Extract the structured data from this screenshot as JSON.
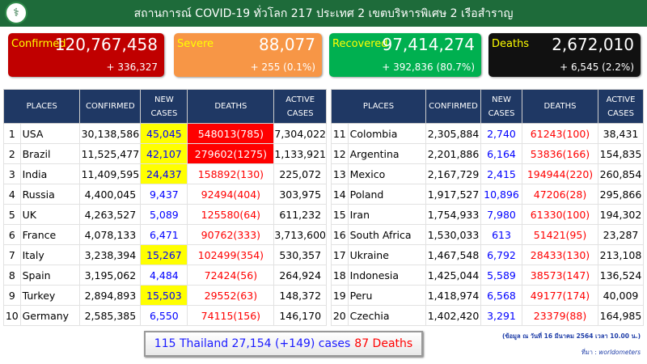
{
  "header": {
    "title": "สถานการณ์ COVID-19 ทั่วโลก 217 ประเทศ 2 เขตบริหารพิเศษ 2 เรือสำราญ",
    "logo_icon": "ministry-of-public-health-logo"
  },
  "cards": [
    {
      "label": "Confirmed",
      "value": "120,767,458",
      "change": "+ 336,327",
      "color": "#c00000"
    },
    {
      "label": "Severe",
      "value": "88,077",
      "change": "+ 255 (0.1%)",
      "color": "#f79646"
    },
    {
      "label": "Recovered",
      "value": "97,414,274",
      "change": "+ 392,836 (80.7%)",
      "color": "#00b050"
    },
    {
      "label": "Deaths",
      "value": "2,672,010",
      "change": "+ 6,545 (2.2%)",
      "color": "#111111"
    }
  ],
  "columns": [
    "PLACES",
    "CONFIRMED",
    "NEW CASES",
    "DEATHS",
    "ACTIVE CASES"
  ],
  "rows": [
    {
      "rank": "1",
      "place": "USA",
      "confirmed": "30,138,586",
      "new": "45,045",
      "deaths": "548013(785)",
      "active": "7,304,022",
      "new_hl": true,
      "death_hl": true
    },
    {
      "rank": "2",
      "place": "Brazil",
      "confirmed": "11,525,477",
      "new": "42,107",
      "deaths": "279602(1275)",
      "active": "1,133,921",
      "new_hl": true,
      "death_hl": true
    },
    {
      "rank": "3",
      "place": "India",
      "confirmed": "11,409,595",
      "new": "24,437",
      "deaths": "158892(130)",
      "active": "225,072",
      "new_hl": true
    },
    {
      "rank": "4",
      "place": "Russia",
      "confirmed": "4,400,045",
      "new": "9,437",
      "deaths": "92494(404)",
      "active": "303,975"
    },
    {
      "rank": "5",
      "place": "UK",
      "confirmed": "4,263,527",
      "new": "5,089",
      "deaths": "125580(64)",
      "active": "611,232"
    },
    {
      "rank": "6",
      "place": "France",
      "confirmed": "4,078,133",
      "new": "6,471",
      "deaths": "90762(333)",
      "active": "3,713,600"
    },
    {
      "rank": "7",
      "place": "Italy",
      "confirmed": "3,238,394",
      "new": "15,267",
      "deaths": "102499(354)",
      "active": "530,357",
      "new_hl": true
    },
    {
      "rank": "8",
      "place": "Spain",
      "confirmed": "3,195,062",
      "new": "4,484",
      "deaths": "72424(56)",
      "active": "264,924"
    },
    {
      "rank": "9",
      "place": "Turkey",
      "confirmed": "2,894,893",
      "new": "15,503",
      "deaths": "29552(63)",
      "active": "148,372",
      "new_hl": true
    },
    {
      "rank": "10",
      "place": "Germany",
      "confirmed": "2,585,385",
      "new": "6,550",
      "deaths": "74115(156)",
      "active": "146,170"
    },
    {
      "rank": "11",
      "place": "Colombia",
      "confirmed": "2,305,884",
      "new": "2,740",
      "deaths": "61243(100)",
      "active": "38,431"
    },
    {
      "rank": "12",
      "place": "Argentina",
      "confirmed": "2,201,886",
      "new": "6,164",
      "deaths": "53836(166)",
      "active": "154,835"
    },
    {
      "rank": "13",
      "place": "Mexico",
      "confirmed": "2,167,729",
      "new": "2,415",
      "deaths": "194944(220)",
      "active": "260,854"
    },
    {
      "rank": "14",
      "place": "Poland",
      "confirmed": "1,917,527",
      "new": "10,896",
      "deaths": "47206(28)",
      "active": "295,866"
    },
    {
      "rank": "15",
      "place": "Iran",
      "confirmed": "1,754,933",
      "new": "7,980",
      "deaths": "61330(100)",
      "active": "194,302"
    },
    {
      "rank": "16",
      "place": "South Africa",
      "confirmed": "1,530,033",
      "new": "613",
      "deaths": "51421(95)",
      "active": "23,287"
    },
    {
      "rank": "17",
      "place": "Ukraine",
      "confirmed": "1,467,548",
      "new": "6,792",
      "deaths": "28433(130)",
      "active": "213,108"
    },
    {
      "rank": "18",
      "place": "Indonesia",
      "confirmed": "1,425,044",
      "new": "5,589",
      "deaths": "38573(147)",
      "active": "136,524"
    },
    {
      "rank": "19",
      "place": "Peru",
      "confirmed": "1,418,974",
      "new": "6,568",
      "deaths": "49177(174)",
      "active": "40,009"
    },
    {
      "rank": "20",
      "place": "Czechia",
      "confirmed": "1,402,420",
      "new": "3,291",
      "deaths": "23379(88)",
      "active": "164,985"
    }
  ],
  "thailand": {
    "text": "115 Thailand 27,154 (+149) cases",
    "deaths": "87 Deaths"
  },
  "footer": {
    "note": "(ข้อมูล ณ วันที่ 16 มีนาคม 2564 เวลา 10.00 น.)",
    "source_label": "ที่มา :",
    "source": "worldometers"
  }
}
